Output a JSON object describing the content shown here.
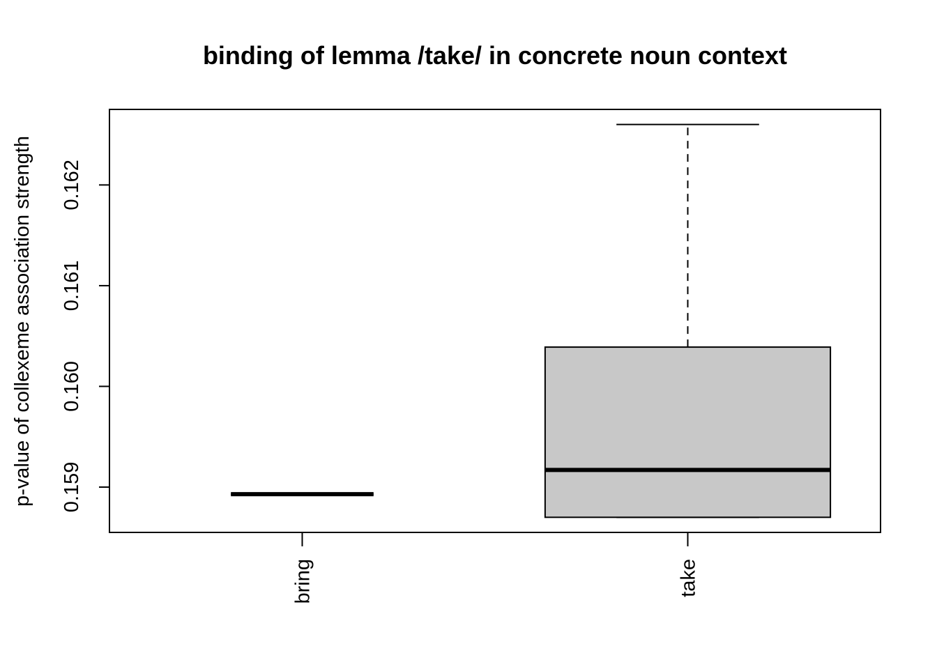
{
  "chart_data": {
    "type": "boxplot",
    "title": "binding of lemma /take/ in concrete noun context",
    "xlabel": "",
    "ylabel": "p-value of collexeme association strength",
    "categories": [
      "bring",
      "take"
    ],
    "y_ticks": [
      0.159,
      0.16,
      0.161,
      0.162
    ],
    "y_tick_labels": [
      "0.159",
      "0.160",
      "0.161",
      "0.162"
    ],
    "ylim": [
      0.15855,
      0.16275
    ],
    "boxes": [
      {
        "category": "bring",
        "min": 0.15893,
        "q1": 0.15893,
        "median": 0.15893,
        "q3": 0.15893,
        "max": 0.15893,
        "fill": "#C8C8C8"
      },
      {
        "category": "take",
        "min": 0.1587,
        "q1": 0.1587,
        "median": 0.15917,
        "q3": 0.16039,
        "max": 0.1626,
        "fill": "#C8C8C8"
      }
    ],
    "grid": false,
    "legend": "none",
    "colors": {
      "box_fill": "#C8C8C8",
      "line": "#000000"
    }
  }
}
